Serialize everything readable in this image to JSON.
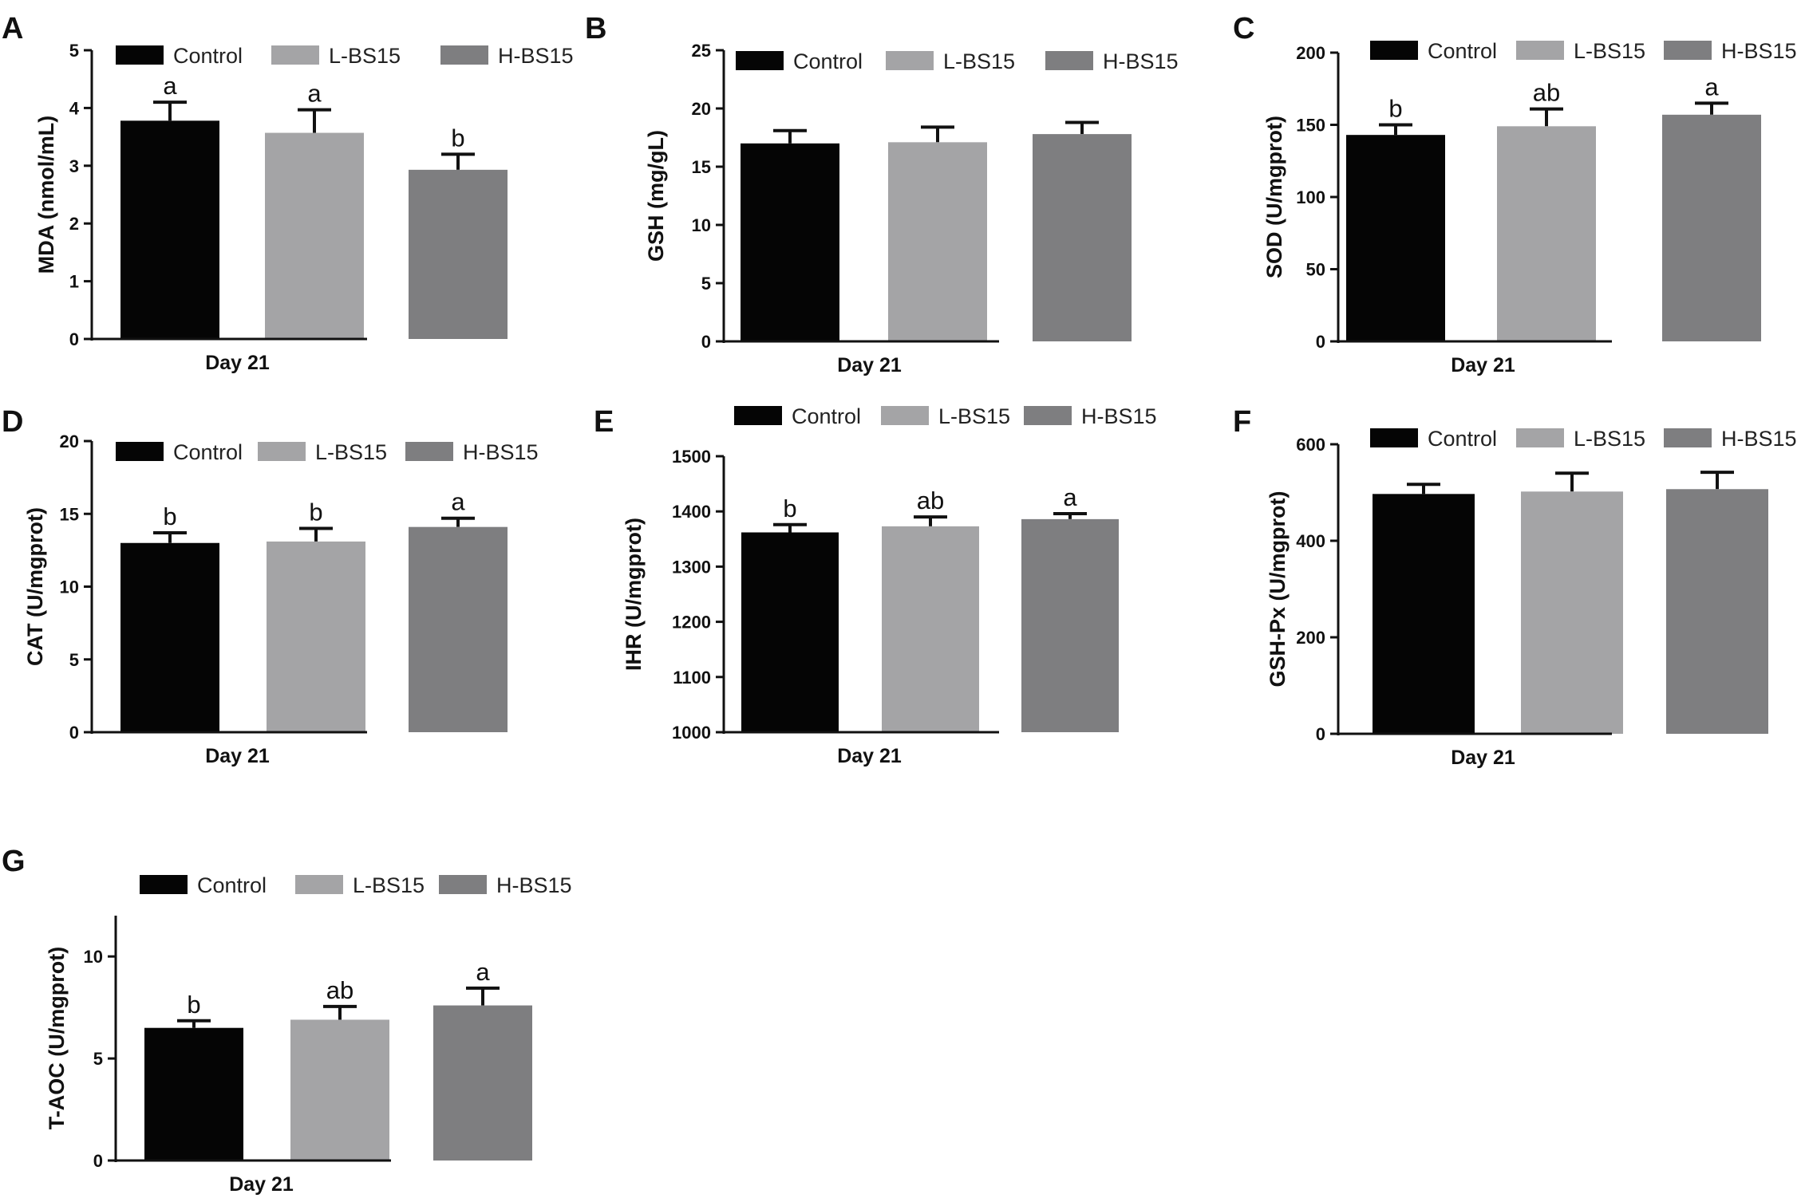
{
  "colors": {
    "control": "#050505",
    "lbs15": "#a4a4a6",
    "hbs15": "#7e7e80",
    "axis": "#111111"
  },
  "chart_data": [
    {
      "panel": "A",
      "type": "bar",
      "xlabel": "Day 21",
      "ylabel": "MDA (nmol/mL)",
      "ylim": [
        0,
        5
      ],
      "ticks": [
        "0",
        "1",
        "2",
        "3",
        "4",
        "5"
      ],
      "grid": false,
      "legend": "top",
      "legend_labels": [
        "Control",
        "L-BS15",
        "H-BS15"
      ],
      "series": [
        {
          "name": "Control",
          "value": 3.78,
          "error": 0.32,
          "annotation": "a"
        },
        {
          "name": "L-BS15",
          "value": 3.57,
          "error": 0.4,
          "annotation": "a"
        },
        {
          "name": "H-BS15",
          "value": 2.93,
          "error": 0.27,
          "annotation": "b"
        }
      ]
    },
    {
      "panel": "B",
      "type": "bar",
      "xlabel": "Day 21",
      "ylabel": "GSH (mg/gL)",
      "ylim": [
        0,
        25
      ],
      "ticks": [
        "0",
        "5",
        "10",
        "15",
        "20",
        "25"
      ],
      "grid": false,
      "legend": "top",
      "legend_labels": [
        "Control",
        "L-BS15",
        "H-BS15"
      ],
      "series": [
        {
          "name": "Control",
          "value": 17.0,
          "error": 1.1,
          "annotation": ""
        },
        {
          "name": "L-BS15",
          "value": 17.1,
          "error": 1.3,
          "annotation": ""
        },
        {
          "name": "H-BS15",
          "value": 17.8,
          "error": 1.0,
          "annotation": ""
        }
      ]
    },
    {
      "panel": "C",
      "type": "bar",
      "xlabel": "Day 21",
      "ylabel": "SOD (U/mgprot)",
      "ylim": [
        0,
        200
      ],
      "ticks": [
        "0",
        "50",
        "100",
        "150",
        "200"
      ],
      "grid": false,
      "legend": "top",
      "legend_labels": [
        "Control",
        "L-BS15",
        "H-BS15"
      ],
      "series": [
        {
          "name": "Control",
          "value": 143,
          "error": 7,
          "annotation": "b"
        },
        {
          "name": "L-BS15",
          "value": 149,
          "error": 12,
          "annotation": "ab"
        },
        {
          "name": "H-BS15",
          "value": 157,
          "error": 8,
          "annotation": "a"
        }
      ]
    },
    {
      "panel": "D",
      "type": "bar",
      "xlabel": "Day 21",
      "ylabel": "CAT (U/mgprot)",
      "ylim": [
        0,
        20
      ],
      "ticks": [
        "0",
        "5",
        "10",
        "15",
        "20"
      ],
      "grid": false,
      "legend": "top",
      "legend_labels": [
        "Control",
        "L-BS15",
        "H-BS15"
      ],
      "series": [
        {
          "name": "Control",
          "value": 13.0,
          "error": 0.7,
          "annotation": "b"
        },
        {
          "name": "L-BS15",
          "value": 13.1,
          "error": 0.9,
          "annotation": "b"
        },
        {
          "name": "H-BS15",
          "value": 14.1,
          "error": 0.6,
          "annotation": "a"
        }
      ]
    },
    {
      "panel": "E",
      "type": "bar",
      "xlabel": "Day 21",
      "ylabel": "IHR (U/mgprot)",
      "ylim": [
        1000,
        1500
      ],
      "ticks": [
        "1000",
        "1100",
        "1200",
        "1300",
        "1400",
        "1500"
      ],
      "grid": false,
      "legend": "top",
      "legend_labels": [
        "Control",
        "L-BS15",
        "H-BS15"
      ],
      "series": [
        {
          "name": "Control",
          "value": 1362,
          "error": 14,
          "annotation": "b"
        },
        {
          "name": "L-BS15",
          "value": 1373,
          "error": 17,
          "annotation": "ab"
        },
        {
          "name": "H-BS15",
          "value": 1386,
          "error": 10,
          "annotation": "a"
        }
      ]
    },
    {
      "panel": "F",
      "type": "bar",
      "xlabel": "Day 21",
      "ylabel": "GSH-Px (U/mgprot)",
      "ylim": [
        0,
        600
      ],
      "ticks": [
        "0",
        "200",
        "400",
        "600"
      ],
      "grid": false,
      "legend": "top",
      "legend_labels": [
        "Control",
        "L-BS15",
        "H-BS15"
      ],
      "series": [
        {
          "name": "Control",
          "value": 497,
          "error": 20,
          "annotation": ""
        },
        {
          "name": "L-BS15",
          "value": 502,
          "error": 38,
          "annotation": ""
        },
        {
          "name": "H-BS15",
          "value": 507,
          "error": 35,
          "annotation": ""
        }
      ]
    },
    {
      "panel": "G",
      "type": "bar",
      "xlabel": "Day 21",
      "ylabel": "T-AOC (U/mgprot)",
      "ylim": [
        0,
        12
      ],
      "ticks": [
        "0",
        "5",
        "10"
      ],
      "grid": false,
      "legend": "top",
      "legend_labels": [
        "Control",
        "L-BS15",
        "H-BS15"
      ],
      "series": [
        {
          "name": "Control",
          "value": 6.5,
          "error": 0.35,
          "annotation": "b"
        },
        {
          "name": "L-BS15",
          "value": 6.9,
          "error": 0.65,
          "annotation": "ab"
        },
        {
          "name": "H-BS15",
          "value": 7.6,
          "error": 0.85,
          "annotation": "a"
        }
      ]
    }
  ]
}
